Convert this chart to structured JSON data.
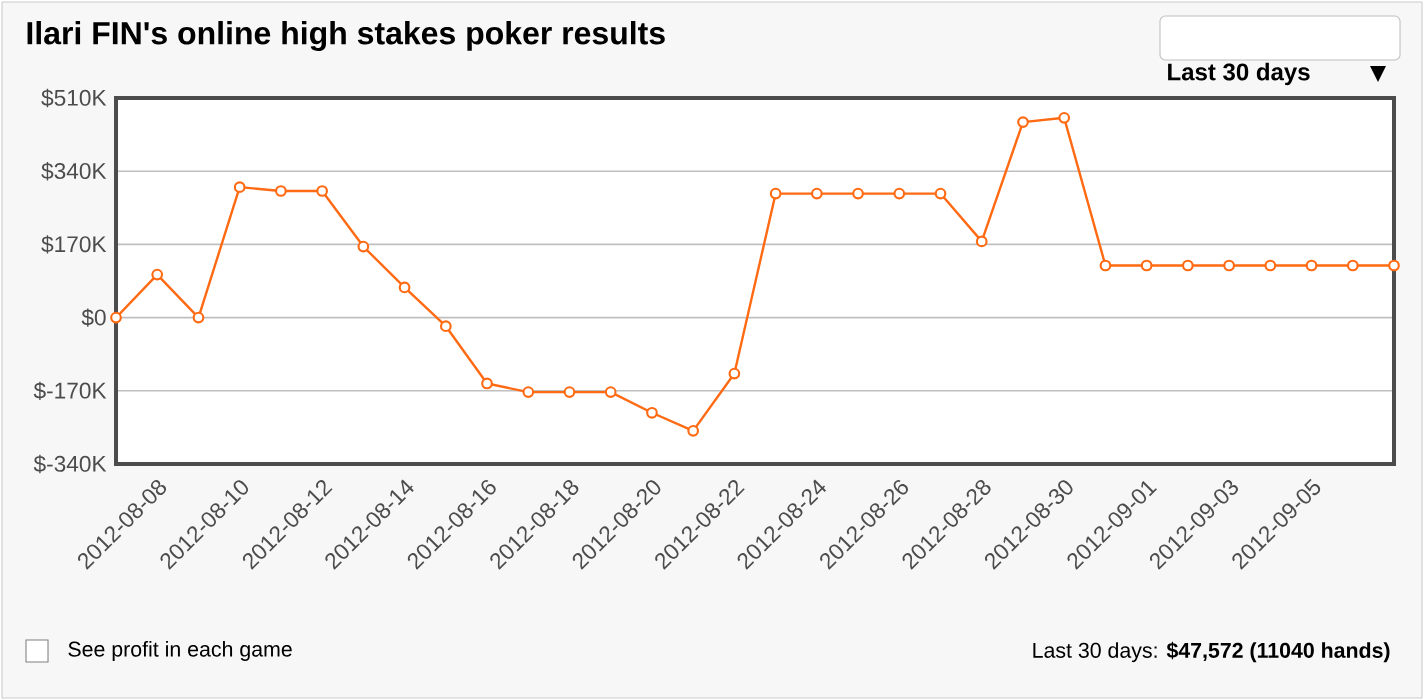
{
  "chart_data": {
    "type": "line",
    "title": "Ilari FIN's online high stakes poker results",
    "x": [
      "2012-08-07",
      "2012-08-08",
      "2012-08-09",
      "2012-08-10",
      "2012-08-11",
      "2012-08-12",
      "2012-08-13",
      "2012-08-14",
      "2012-08-15",
      "2012-08-16",
      "2012-08-17",
      "2012-08-18",
      "2012-08-19",
      "2012-08-20",
      "2012-08-21",
      "2012-08-22",
      "2012-08-23",
      "2012-08-24",
      "2012-08-25",
      "2012-08-26",
      "2012-08-27",
      "2012-08-28",
      "2012-08-29",
      "2012-08-30",
      "2012-08-31",
      "2012-09-01",
      "2012-09-02",
      "2012-09-03",
      "2012-09-04",
      "2012-09-05",
      "2012-09-06",
      "2012-09-07"
    ],
    "series": [
      {
        "color": "#ff6a13",
        "values": [
          0,
          100000,
          0,
          303000,
          294000,
          294000,
          165000,
          70000,
          -20000,
          -153000,
          -173000,
          -173000,
          -173000,
          -221000,
          -263000,
          -130000,
          288000,
          288000,
          288000,
          288000,
          288000,
          177000,
          454000,
          464000,
          121000,
          121000,
          121000,
          121000,
          121000,
          121000,
          121000,
          121000
        ]
      }
    ],
    "xlim": [
      "2012-08-07",
      "2012-09-07"
    ],
    "xticks": [
      "2012-08-08",
      "2012-08-10",
      "2012-08-12",
      "2012-08-14",
      "2012-08-16",
      "2012-08-18",
      "2012-08-20",
      "2012-08-22",
      "2012-08-24",
      "2012-08-26",
      "2012-08-28",
      "2012-08-30",
      "2012-09-01",
      "2012-09-03",
      "2012-09-05"
    ],
    "ylim": [
      -340000,
      510000
    ],
    "yticks": [
      {
        "value": -340000,
        "label": "$-340K"
      },
      {
        "value": -170000,
        "label": "$-170K"
      },
      {
        "value": 0,
        "label": "$0"
      },
      {
        "value": 170000,
        "label": "$170K"
      },
      {
        "value": 340000,
        "label": "$340K"
      },
      {
        "value": 510000,
        "label": "$510K"
      }
    ],
    "grid": "y",
    "marker": "circle",
    "line_style": "solid",
    "annotations": [
      "Last 30 days",
      "See profit in each game",
      "Last 30 days: **$47,572 (11040 hands)**"
    ]
  }
}
